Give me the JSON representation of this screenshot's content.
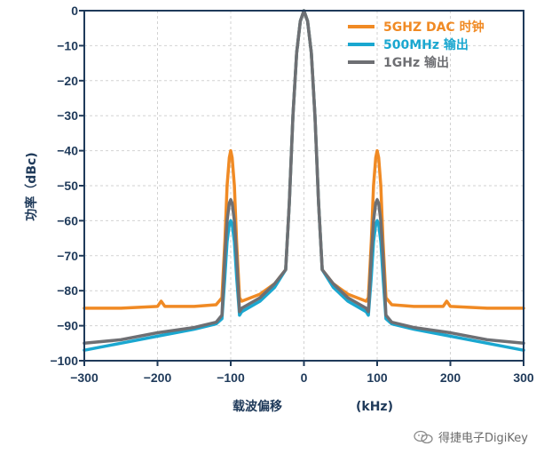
{
  "chart_data": {
    "type": "line",
    "xlabel": "载波偏移",
    "xunit": "(kHz)",
    "ylabel": "功率（dBc)",
    "xlim": [
      -300,
      300
    ],
    "ylim": [
      -100,
      0
    ],
    "x_ticks": [
      -300,
      -200,
      -100,
      0,
      100,
      200,
      300
    ],
    "y_ticks": [
      0,
      -10,
      -20,
      -30,
      -40,
      -50,
      -60,
      -70,
      -80,
      -90,
      -100
    ],
    "grid": true,
    "legend_position": "top-right",
    "series": [
      {
        "name": "5GHZ DAC 时钟",
        "color": "#f08a24",
        "x": [
          -300,
          -250,
          -200,
          -195,
          -190,
          -150,
          -120,
          -112,
          -108,
          -105,
          -102,
          -100,
          -98,
          -95,
          -92,
          -88,
          -85,
          -60,
          -40,
          -25,
          -20,
          -15,
          -10,
          -5,
          0,
          5,
          10,
          15,
          20,
          25,
          40,
          60,
          85,
          88,
          92,
          95,
          98,
          100,
          102,
          105,
          108,
          112,
          120,
          150,
          190,
          195,
          200,
          250,
          300
        ],
        "y": [
          -85,
          -85,
          -84.5,
          -83,
          -84.5,
          -84.5,
          -84,
          -82,
          -66,
          -50,
          -42,
          -40,
          -42,
          -50,
          -66,
          -82,
          -83,
          -81,
          -78,
          -74,
          -55,
          -30,
          -12,
          -3,
          0,
          -3,
          -12,
          -30,
          -55,
          -74,
          -78,
          -81,
          -83,
          -82,
          -66,
          -50,
          -42,
          -40,
          -42,
          -50,
          -66,
          -82,
          -84,
          -84.5,
          -84.5,
          -83,
          -84.5,
          -85,
          -85
        ]
      },
      {
        "name": "500MHz 输出",
        "color": "#1aa7d0",
        "x": [
          -300,
          -250,
          -200,
          -150,
          -120,
          -112,
          -108,
          -105,
          -102,
          -100,
          -98,
          -95,
          -92,
          -88,
          -85,
          -60,
          -40,
          -25,
          -20,
          -15,
          -10,
          -5,
          0,
          5,
          10,
          15,
          20,
          25,
          40,
          60,
          85,
          88,
          92,
          95,
          98,
          100,
          102,
          105,
          108,
          112,
          120,
          150,
          200,
          250,
          300
        ],
        "y": [
          -97,
          -95,
          -93,
          -91,
          -89.5,
          -88,
          -76,
          -66,
          -61,
          -60,
          -61,
          -66,
          -76,
          -87,
          -86,
          -83,
          -79,
          -74,
          -55,
          -30,
          -12,
          -3,
          0,
          -3,
          -12,
          -30,
          -55,
          -74,
          -79,
          -83,
          -86,
          -87,
          -76,
          -66,
          -61,
          -60,
          -61,
          -66,
          -76,
          -88,
          -89.5,
          -91,
          -93,
          -95,
          -97
        ]
      },
      {
        "name": "1GHz 输出",
        "color": "#6e6f73",
        "x": [
          -300,
          -250,
          -200,
          -150,
          -120,
          -112,
          -108,
          -105,
          -102,
          -100,
          -98,
          -95,
          -92,
          -88,
          -85,
          -60,
          -40,
          -25,
          -20,
          -15,
          -10,
          -5,
          0,
          5,
          10,
          15,
          20,
          25,
          40,
          60,
          85,
          88,
          92,
          95,
          98,
          100,
          102,
          105,
          108,
          112,
          120,
          150,
          200,
          250,
          300
        ],
        "y": [
          -95,
          -94,
          -92,
          -90.5,
          -89,
          -87,
          -70,
          -60,
          -55,
          -54,
          -55,
          -60,
          -70,
          -86,
          -85,
          -82,
          -78,
          -74,
          -55,
          -30,
          -12,
          -3,
          0,
          -3,
          -12,
          -30,
          -55,
          -74,
          -78,
          -82,
          -85,
          -86,
          -70,
          -60,
          -55,
          -54,
          -55,
          -60,
          -70,
          -87,
          -89,
          -90.5,
          -92,
          -94,
          -95
        ]
      }
    ]
  },
  "watermark": {
    "text": "得捷电子DigiKey",
    "icon": "wechat-icon"
  }
}
